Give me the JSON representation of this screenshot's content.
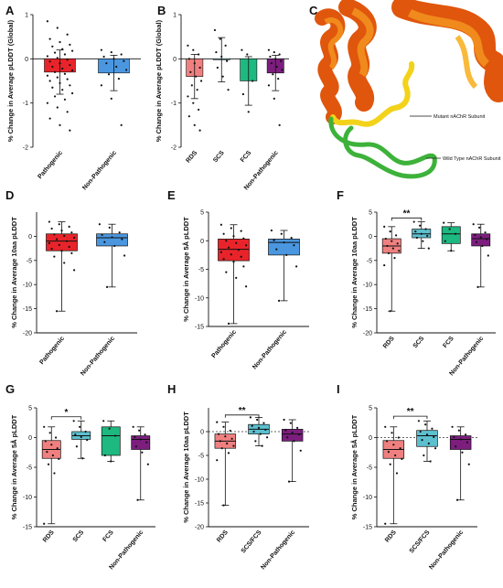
{
  "panels": {
    "A": {
      "letter": "A"
    },
    "B": {
      "letter": "B"
    },
    "C": {
      "letter": "C"
    },
    "D": {
      "letter": "D"
    },
    "E": {
      "letter": "E"
    },
    "F": {
      "letter": "F"
    },
    "G": {
      "letter": "G"
    },
    "H": {
      "letter": "H"
    },
    "I": {
      "letter": "I"
    }
  },
  "structure": {
    "mutant_label": "Mutant nAChR Subunit",
    "wildtype_label": "Wild Type nAChR Subunit",
    "colors": {
      "helix_dark": "#e0560d",
      "helix_mid": "#f08a1c",
      "helix_light": "#f9b93a",
      "loop_yellow": "#f3d21a",
      "loop_green": "#3db23a"
    }
  },
  "colors": {
    "pathogenic": "#e8242a",
    "non_pathogenic": "#4a97e0",
    "rds": "#f08080",
    "scs": "#5cc0cf",
    "fcs": "#1db980",
    "nonpath_purple": "#7d1e7f"
  },
  "chart_data": [
    {
      "id": "A",
      "type": "bar",
      "ylabel": "% Change in Average pLDDT (Global)",
      "ylim": [
        -2,
        1
      ],
      "yticks": [
        -2,
        -1,
        0,
        1
      ],
      "categories": [
        "Pathogenic",
        "Non-Pathogenic"
      ],
      "values": [
        -0.3,
        -0.32
      ],
      "errors": [
        0.5,
        0.4
      ],
      "colors": [
        "#e8242a",
        "#4a97e0"
      ],
      "points": [
        [
          0.85,
          0.7,
          0.55,
          0.45,
          0.38,
          0.32,
          0.28,
          0.22,
          0.18,
          0.14,
          0.1,
          0.06,
          0.02,
          -0.02,
          -0.06,
          -0.1,
          -0.14,
          -0.18,
          -0.22,
          -0.26,
          -0.3,
          -0.34,
          -0.38,
          -0.42,
          -0.46,
          -0.5,
          -0.55,
          -0.6,
          -0.65,
          -0.7,
          -0.78,
          -0.85,
          -0.92,
          -1.0,
          -1.1,
          -1.2,
          -1.35,
          -1.5,
          -1.62
        ],
        [
          0.2,
          0.15,
          0.1,
          0.05,
          0.0,
          -0.05,
          -0.1,
          -0.18,
          -0.25,
          -0.35,
          -0.45,
          -0.6,
          -0.9,
          -1.5
        ]
      ]
    },
    {
      "id": "B",
      "type": "bar",
      "ylabel": "% Change in Average pLDDT (Global)",
      "ylim": [
        -2,
        1
      ],
      "yticks": [
        -2,
        -1,
        0,
        1
      ],
      "categories": [
        "RDS",
        "SCS",
        "FCS",
        "Non-Pathogenic"
      ],
      "values": [
        -0.4,
        -0.02,
        -0.5,
        -0.32
      ],
      "errors": [
        0.5,
        0.5,
        0.55,
        0.4
      ],
      "colors": [
        "#f08080",
        "#5cc0cf",
        "#1db980",
        "#7d1e7f"
      ],
      "points": [
        [
          0.3,
          0.2,
          0.1,
          0.0,
          -0.1,
          -0.2,
          -0.3,
          -0.4,
          -0.5,
          -0.6,
          -0.7,
          -0.85,
          -1.0,
          -1.15,
          -1.3,
          -1.5,
          -1.62
        ],
        [
          0.65,
          0.45,
          0.3,
          0.15,
          0.05,
          -0.05,
          -0.2,
          -0.4,
          -0.7
        ],
        [
          0.2,
          0.1,
          -0.5,
          -0.8,
          -1.2
        ],
        [
          0.2,
          0.15,
          0.1,
          0.05,
          0.0,
          -0.05,
          -0.1,
          -0.18,
          -0.25,
          -0.35,
          -0.45,
          -0.6,
          -0.9,
          -1.5
        ]
      ]
    },
    {
      "id": "D",
      "type": "box",
      "ylabel": "% Change in Average 10aa pLDDT",
      "ylim": [
        -20,
        5
      ],
      "yticks": [
        -20,
        -15,
        -10,
        -5,
        0
      ],
      "categories": [
        "Pathogenic",
        "Non-Pathogenic"
      ],
      "boxes": [
        {
          "min": -15.5,
          "q1": -3,
          "median": -1,
          "q3": 0.5,
          "max": 3
        },
        {
          "min": -10.5,
          "q1": -2,
          "median": -0.3,
          "q3": 0.5,
          "max": 2.5
        }
      ],
      "colors": [
        "#e8242a",
        "#4a97e0"
      ],
      "points": [
        [
          3.0,
          2.5,
          2.0,
          1.6,
          1.2,
          0.8,
          0.4,
          0.1,
          -0.3,
          -0.6,
          -1.0,
          -1.4,
          -1.8,
          -2.2,
          -2.6,
          -3.0,
          -3.5,
          -4.2,
          -5.5,
          -7,
          -15.5
        ],
        [
          2.5,
          1.8,
          0.8,
          0.3,
          -0.2,
          -0.6,
          -1.2,
          -2.0,
          -4.0,
          -10.5
        ]
      ],
      "significance": []
    },
    {
      "id": "E",
      "type": "box",
      "ylabel": "% Change in Average 5Å pLDDT",
      "ylim": [
        -15,
        5
      ],
      "yticks": [
        -15,
        -10,
        -5,
        0,
        5
      ],
      "categories": [
        "Pathogenic",
        "Non-Pathogenic"
      ],
      "boxes": [
        {
          "min": -14.5,
          "q1": -3.5,
          "median": -1.5,
          "q3": 0.3,
          "max": 2.8
        },
        {
          "min": -10.5,
          "q1": -2.5,
          "median": -0.3,
          "q3": 0.3,
          "max": 1.8
        }
      ],
      "colors": [
        "#e8242a",
        "#4a97e0"
      ],
      "points": [
        [
          2.8,
          2.2,
          1.7,
          1.2,
          0.8,
          0.4,
          0.0,
          -0.4,
          -0.8,
          -1.2,
          -1.6,
          -2.0,
          -2.4,
          -2.8,
          -3.2,
          -3.7,
          -4.5,
          -5.5,
          -6.5,
          -8,
          -14.5
        ],
        [
          1.8,
          1.2,
          0.5,
          0.1,
          -0.3,
          -0.8,
          -1.5,
          -2.5,
          -4.5,
          -10.5
        ]
      ],
      "significance": []
    },
    {
      "id": "F",
      "type": "box",
      "ylabel": "% Change in Average 10aa pLDDT",
      "ylim": [
        -20,
        5
      ],
      "yticks": [
        -20,
        -15,
        -10,
        -5,
        0,
        5
      ],
      "categories": [
        "RDS",
        "SCS",
        "FCS",
        "Non-Pathogenic"
      ],
      "boxes": [
        {
          "min": -15.5,
          "q1": -3.5,
          "median": -2,
          "q3": -0.5,
          "max": 2
        },
        {
          "min": -2.5,
          "q1": -0.3,
          "median": 0.5,
          "q3": 1.5,
          "max": 3
        },
        {
          "min": -3,
          "q1": -1.5,
          "median": 0.5,
          "q3": 2,
          "max": 2.8
        },
        {
          "min": -10.5,
          "q1": -2,
          "median": -0.5,
          "q3": 0.5,
          "max": 2.5
        }
      ],
      "colors": [
        "#f08080",
        "#5cc0cf",
        "#1db980",
        "#7d1e7f"
      ],
      "points": [
        [
          2.0,
          1.0,
          0.2,
          -0.5,
          -1.0,
          -1.5,
          -2.0,
          -2.5,
          -3.0,
          -3.5,
          -4.5,
          -6,
          -15.5
        ],
        [
          3.0,
          2.2,
          1.5,
          1.0,
          0.5,
          0.1,
          -0.3,
          -1.0,
          -2.5
        ],
        [
          2.8,
          1.5,
          0.5,
          -1.0,
          -3.0
        ],
        [
          2.5,
          1.8,
          0.8,
          0.3,
          -0.2,
          -0.6,
          -1.2,
          -2.0,
          -4.0,
          -10.5
        ]
      ],
      "significance": [
        {
          "from": 0,
          "to": 1,
          "label": "**",
          "y": 3.8
        }
      ]
    },
    {
      "id": "G",
      "type": "box",
      "ylabel": "% Change in Average 5Å pLDDT",
      "ylim": [
        -15,
        5
      ],
      "yticks": [
        -15,
        -10,
        -5,
        0,
        5
      ],
      "categories": [
        "RDS",
        "SCS",
        "FCS",
        "Non-Pathogenic"
      ],
      "boxes": [
        {
          "min": -14.5,
          "q1": -3.5,
          "median": -2,
          "q3": -0.5,
          "max": 1.8
        },
        {
          "min": -3.5,
          "q1": -0.3,
          "median": 0.3,
          "q3": 1.0,
          "max": 2.8
        },
        {
          "min": -4,
          "q1": -3,
          "median": 0.3,
          "q3": 1.8,
          "max": 2.8
        },
        {
          "min": -10.5,
          "q1": -2,
          "median": -0.3,
          "q3": 0.3,
          "max": 1.8
        }
      ],
      "colors": [
        "#f08080",
        "#5cc0cf",
        "#1db980",
        "#7d1e7f"
      ],
      "points": [
        [
          1.8,
          0.8,
          0.0,
          -0.6,
          -1.2,
          -1.8,
          -2.4,
          -3.0,
          -3.6,
          -4.5,
          -6,
          -14.5
        ],
        [
          2.8,
          1.8,
          1.0,
          0.5,
          0.1,
          -0.4,
          -1.5,
          -3.5
        ],
        [
          2.8,
          1.5,
          0.3,
          -3.0,
          -4.0
        ],
        [
          1.8,
          1.2,
          0.5,
          0.1,
          -0.3,
          -0.8,
          -1.5,
          -2.5,
          -4.5,
          -10.5
        ]
      ],
      "significance": [
        {
          "from": 0,
          "to": 1,
          "label": "*",
          "y": 3.5
        }
      ]
    },
    {
      "id": "H",
      "type": "box",
      "ylabel": "% Change in Average 10aa pLDDT",
      "ylim": [
        -20,
        5
      ],
      "yticks": [
        -20,
        -15,
        -10,
        -5,
        0
      ],
      "categories": [
        "RDS",
        "SCS/FCS",
        "Non-Pathogenic"
      ],
      "boxes": [
        {
          "min": -15.5,
          "q1": -3.5,
          "median": -2,
          "q3": -0.5,
          "max": 2
        },
        {
          "min": -3,
          "q1": -0.5,
          "median": 0.5,
          "q3": 1.5,
          "max": 3
        },
        {
          "min": -10.5,
          "q1": -2,
          "median": -0.5,
          "q3": 0.5,
          "max": 2.5
        }
      ],
      "colors": [
        "#f08080",
        "#5cc0cf",
        "#7d1e7f"
      ],
      "points": [
        [
          2.0,
          1.0,
          0.2,
          -0.5,
          -1.0,
          -1.5,
          -2.0,
          -2.5,
          -3.0,
          -3.5,
          -4.5,
          -6,
          -15.5
        ],
        [
          3.0,
          2.5,
          1.8,
          1.2,
          0.8,
          0.4,
          0.0,
          -0.5,
          -1.2,
          -2.0,
          -3.0
        ],
        [
          2.5,
          1.8,
          0.8,
          0.3,
          -0.2,
          -0.6,
          -1.2,
          -2.0,
          -4.0,
          -10.5
        ]
      ],
      "zero_line": true,
      "significance": [
        {
          "from": 0,
          "to": 1,
          "label": "**",
          "y": 3.5
        }
      ]
    },
    {
      "id": "I",
      "type": "box",
      "ylabel": "% Change in Average 5Å pLDDT",
      "ylim": [
        -15,
        5
      ],
      "yticks": [
        -15,
        -10,
        -5,
        0,
        5
      ],
      "categories": [
        "RDS",
        "SCS/FCS",
        "Non-Pathogenic"
      ],
      "boxes": [
        {
          "min": -14.5,
          "q1": -3.5,
          "median": -2,
          "q3": -0.5,
          "max": 1.8
        },
        {
          "min": -4,
          "q1": -1.5,
          "median": 0.3,
          "q3": 1.2,
          "max": 2.8
        },
        {
          "min": -10.5,
          "q1": -2,
          "median": -0.3,
          "q3": 0.3,
          "max": 1.8
        }
      ],
      "colors": [
        "#f08080",
        "#5cc0cf",
        "#7d1e7f"
      ],
      "points": [
        [
          1.8,
          0.8,
          0.0,
          -0.6,
          -1.2,
          -1.8,
          -2.4,
          -3.0,
          -3.6,
          -4.5,
          -6,
          -14.5
        ],
        [
          2.8,
          2.2,
          1.5,
          1.0,
          0.5,
          0.1,
          -0.4,
          -1.0,
          -1.8,
          -3.0,
          -4.0
        ],
        [
          1.8,
          1.2,
          0.5,
          0.1,
          -0.3,
          -0.8,
          -1.5,
          -2.5,
          -4.5,
          -10.5
        ]
      ],
      "zero_line": true,
      "significance": [
        {
          "from": 0,
          "to": 1,
          "label": "**",
          "y": 3.6
        }
      ]
    }
  ]
}
